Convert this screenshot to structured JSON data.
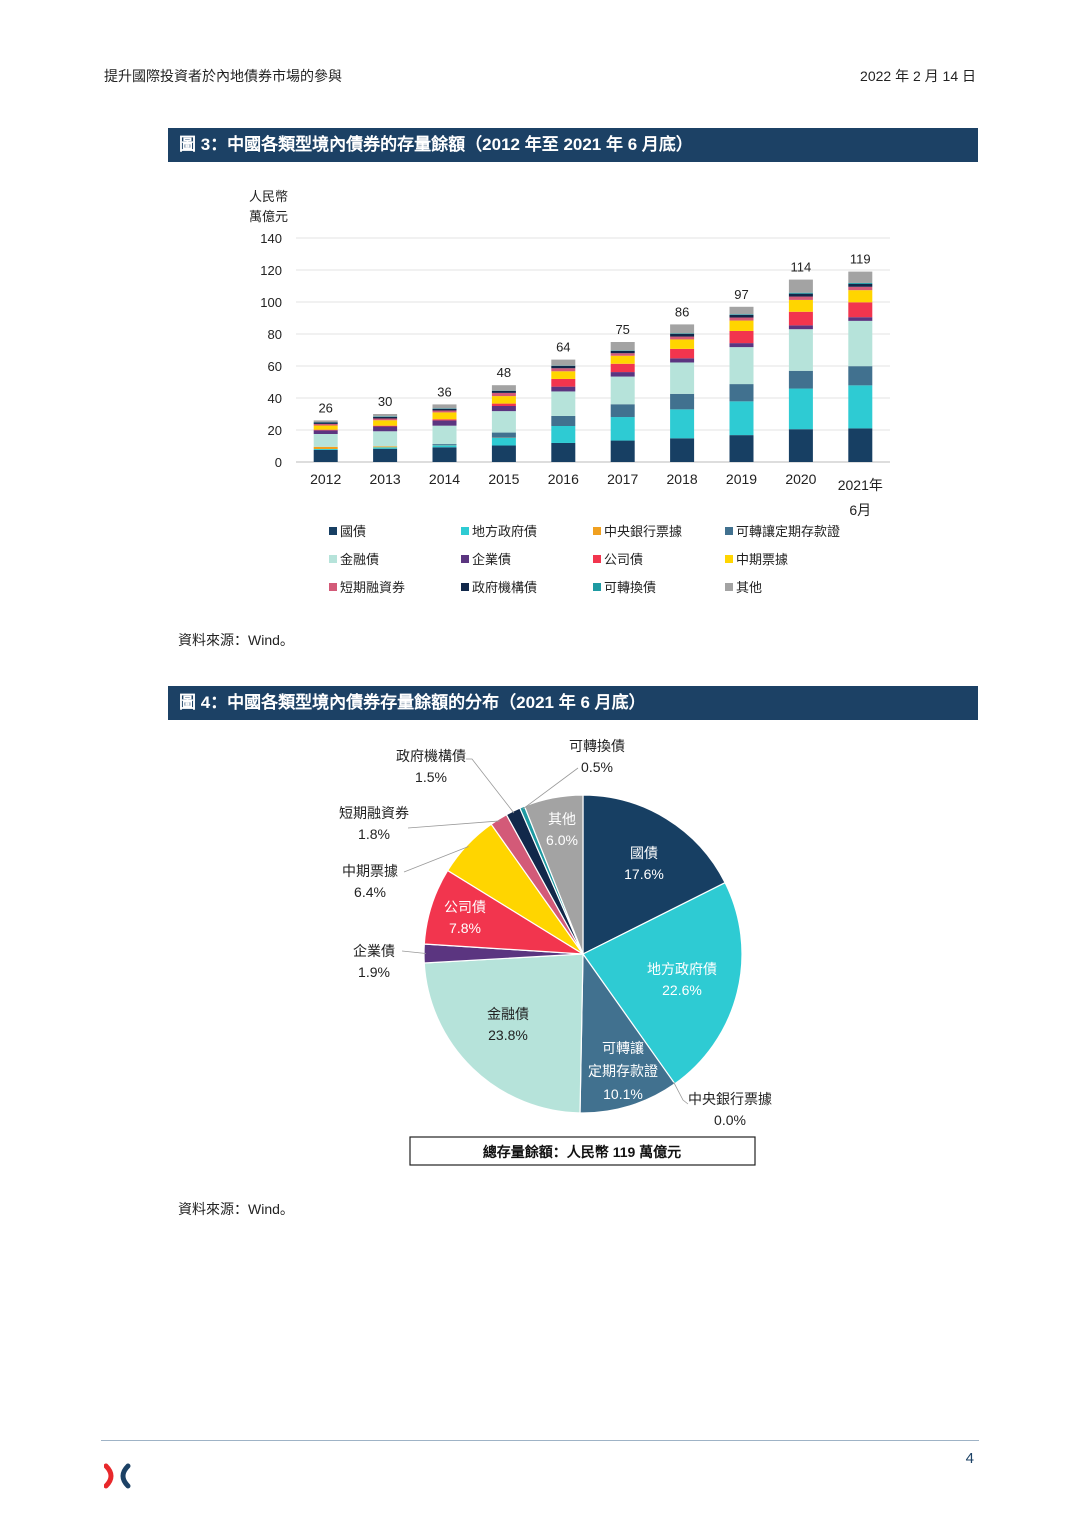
{
  "header": {
    "title": "提升國際投資者於內地債券市場的參與",
    "date": "2022 年 2 月 14 日"
  },
  "figure3": {
    "title": "圖 3：中國各類型境內債券的存量餘額（2012 年至 2021 年 6 月底）",
    "source": "資料來源：Wind。"
  },
  "figure4": {
    "title": "圖 4：中國各類型境內債券存量餘額的分布（2021 年 6 月底）",
    "source": "資料來源：Wind。",
    "total_label": "總存量餘額：人民幣 119 萬億元"
  },
  "page_number": "4",
  "colors": {
    "國債": "#173f63",
    "地方政府債": "#2ecbd3",
    "中央銀行票據": "#f0a020",
    "可轉讓定期存款證": "#41718f",
    "金融債": "#b6e3da",
    "企業債": "#5b3580",
    "公司債": "#f2354e",
    "中期票據": "#ffd500",
    "短期融資券": "#d35a78",
    "政府機構債": "#11284a",
    "可轉換債": "#1e9aa2",
    "其他": "#a3a3a3"
  },
  "chart_data": [
    {
      "type": "bar",
      "stacked": true,
      "ylabel": "人民幣\n萬億元",
      "ylim": [
        0,
        140
      ],
      "yticks": [
        0,
        20,
        40,
        60,
        80,
        100,
        120,
        140
      ],
      "grid": true,
      "legend_position": "bottom",
      "categories": [
        "2012",
        "2013",
        "2014",
        "2015",
        "2016",
        "2017",
        "2018",
        "2019",
        "2020",
        "2021年\n6月"
      ],
      "totals": [
        26,
        30,
        36,
        48,
        64,
        75,
        86,
        97,
        114,
        119
      ],
      "series": [
        {
          "name": "國債",
          "values": [
            7.5,
            8.3,
            9.2,
            10.3,
            11.9,
            13.4,
            14.8,
            16.8,
            20.5,
            21.0
          ]
        },
        {
          "name": "地方政府債",
          "values": [
            0.6,
            0.9,
            1.2,
            4.8,
            10.6,
            14.7,
            18.1,
            21.1,
            25.4,
            26.9
          ]
        },
        {
          "name": "中央銀行票據",
          "values": [
            1.4,
            0.6,
            0.1,
            0.1,
            0.0,
            0.0,
            0.0,
            0.0,
            0.0,
            0.0
          ]
        },
        {
          "name": "可轉讓定期存款證",
          "values": [
            0.0,
            0.0,
            0.7,
            3.2,
            6.3,
            8.0,
            9.7,
            10.8,
            11.1,
            12.0
          ]
        },
        {
          "name": "金融債",
          "values": [
            8.0,
            9.4,
            11.5,
            13.4,
            15.3,
            17.3,
            19.6,
            23.1,
            26.0,
            28.3
          ]
        },
        {
          "name": "企業債",
          "values": [
            2.3,
            3.0,
            3.3,
            3.2,
            3.0,
            2.8,
            2.6,
            2.5,
            2.4,
            2.3
          ]
        },
        {
          "name": "公司債",
          "values": [
            0.4,
            0.5,
            0.7,
            1.5,
            4.8,
            5.2,
            5.9,
            7.6,
            8.5,
            9.3
          ]
        },
        {
          "name": "中期票據",
          "values": [
            2.6,
            3.4,
            4.3,
            4.7,
            4.8,
            5.0,
            5.9,
            6.5,
            7.4,
            7.6
          ]
        },
        {
          "name": "短期融資券",
          "values": [
            1.0,
            1.1,
            1.2,
            2.0,
            1.9,
            1.6,
            1.8,
            1.9,
            2.1,
            2.1
          ]
        },
        {
          "name": "政府機構債",
          "values": [
            0.9,
            1.0,
            1.1,
            1.2,
            1.4,
            1.5,
            1.6,
            1.7,
            1.8,
            1.8
          ]
        },
        {
          "name": "可轉換債",
          "values": [
            0.2,
            0.3,
            0.3,
            0.2,
            0.2,
            0.3,
            0.3,
            0.4,
            0.6,
            0.6
          ]
        },
        {
          "name": "其他",
          "values": [
            1.1,
            1.5,
            2.4,
            3.4,
            3.8,
            5.2,
            5.7,
            4.6,
            8.2,
            7.1
          ]
        }
      ]
    },
    {
      "type": "pie",
      "unit": "%",
      "series": [
        {
          "name": "國債",
          "value": 17.6,
          "label": "17.6%"
        },
        {
          "name": "地方政府債",
          "value": 22.6,
          "label": "22.6%"
        },
        {
          "name": "中央銀行票據",
          "value": 0.0,
          "label": "0.0%"
        },
        {
          "name": "可轉讓定期存款證",
          "value": 10.1,
          "label": "10.1%",
          "display_name": [
            "可轉讓",
            "定期存款證"
          ]
        },
        {
          "name": "金融債",
          "value": 23.8,
          "label": "23.8%"
        },
        {
          "name": "企業債",
          "value": 1.9,
          "label": "1.9%"
        },
        {
          "name": "公司債",
          "value": 7.8,
          "label": "7.8%"
        },
        {
          "name": "中期票據",
          "value": 6.4,
          "label": "6.4%"
        },
        {
          "name": "短期融資券",
          "value": 1.8,
          "label": "1.8%"
        },
        {
          "name": "政府機構債",
          "value": 1.5,
          "label": "1.5%"
        },
        {
          "name": "可轉換債",
          "value": 0.5,
          "label": "0.5%"
        },
        {
          "name": "其他",
          "value": 6.0,
          "label": "6.0%"
        }
      ]
    }
  ]
}
